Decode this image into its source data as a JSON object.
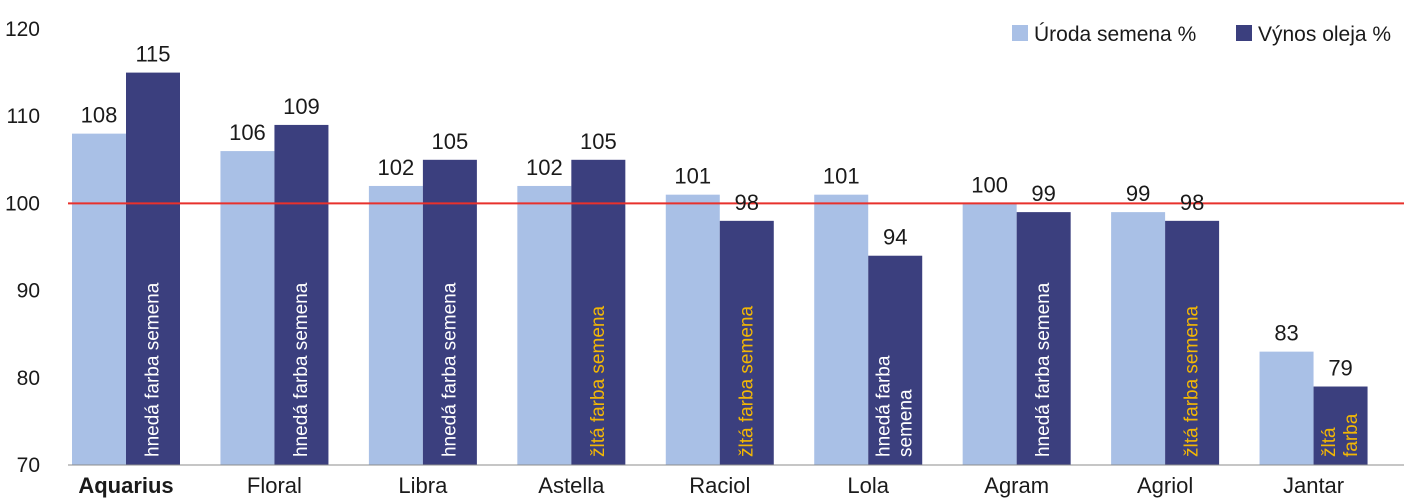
{
  "chart_data": {
    "type": "bar",
    "title": "",
    "xlabel": "",
    "ylabel": "",
    "ylim": [
      70,
      120
    ],
    "yticks": [
      70,
      80,
      90,
      100,
      110,
      120
    ],
    "grid": false,
    "legend_position": "top-right",
    "reference_line": {
      "value": 100,
      "color": "#e8312c"
    },
    "categories": [
      "Aquarius",
      "Floral",
      "Libra",
      "Astella",
      "Raciol",
      "Lola",
      "Agram",
      "Agriol",
      "Jantar"
    ],
    "highlight_category": {
      "index": 0,
      "color": "#d0243a"
    },
    "series": [
      {
        "name": "Úroda semena %",
        "color": "#a9c0e6",
        "values": [
          108,
          106,
          102,
          102,
          101,
          101,
          100,
          99,
          83
        ]
      },
      {
        "name": "Výnos oleja %",
        "color": "#3b3f7e",
        "values": [
          115,
          109,
          105,
          105,
          98,
          94,
          99,
          98,
          79
        ]
      }
    ],
    "annotations": [
      {
        "lines": [
          "hnedá farba semena"
        ],
        "kind": "brown"
      },
      {
        "lines": [
          "hnedá farba semena"
        ],
        "kind": "brown"
      },
      {
        "lines": [
          "hnedá farba semena"
        ],
        "kind": "brown"
      },
      {
        "lines": [
          "žltá farba semena"
        ],
        "kind": "yellow"
      },
      {
        "lines": [
          "žltá farba semena"
        ],
        "kind": "yellow"
      },
      {
        "lines": [
          "hnedá farba",
          "semena"
        ],
        "kind": "brown"
      },
      {
        "lines": [
          "hnedá farba semena"
        ],
        "kind": "brown"
      },
      {
        "lines": [
          "žltá farba semena"
        ],
        "kind": "yellow"
      },
      {
        "lines": [
          "žltá",
          "farba"
        ],
        "kind": "yellow"
      }
    ],
    "annotation_colors": {
      "brown": "#ffffff",
      "yellow": "#f2b705"
    }
  }
}
